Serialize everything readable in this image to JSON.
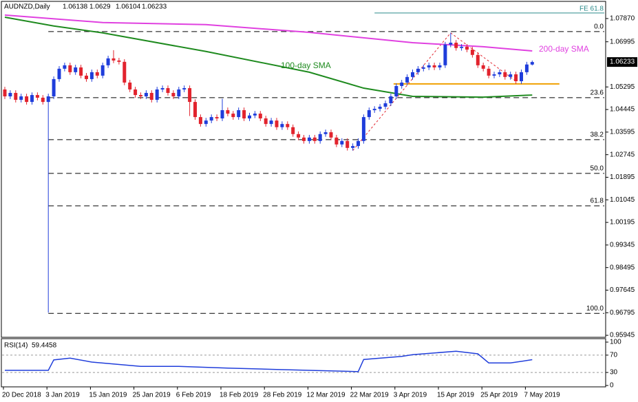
{
  "chart_data": [
    {
      "type": "candlestick",
      "title": "AUDNZD,Daily",
      "categories": [
        "20 Dec 2018",
        null,
        null,
        null,
        null,
        null,
        null,
        null,
        "3 Jan 2019",
        null,
        null,
        null,
        null,
        null,
        null,
        null,
        "15 Jan 2019",
        null,
        null,
        null,
        null,
        null,
        null,
        null,
        "25 Jan 2019",
        null,
        null,
        null,
        null,
        null,
        null,
        null,
        "6 Feb 2019",
        null,
        null,
        null,
        null,
        null,
        null,
        null,
        "18 Feb 2019",
        null,
        null,
        null,
        null,
        null,
        null,
        null,
        "28 Feb 2019",
        null,
        null,
        null,
        null,
        null,
        null,
        null,
        "12 Mar 2019",
        null,
        null,
        null,
        null,
        null,
        null,
        null,
        "22 Mar 2019",
        null,
        null,
        null,
        null,
        null,
        null,
        null,
        "3 Apr 2019",
        null,
        null,
        null,
        null,
        null,
        null,
        null,
        "15 Apr 2019",
        null,
        null,
        null,
        null,
        null,
        null,
        null,
        "25 Apr 2019",
        null,
        null,
        null,
        null,
        null,
        null,
        null,
        "7 May 2019",
        null
      ],
      "open": [
        1.052,
        1.0494,
        1.0507,
        1.0481,
        1.0494,
        1.0473,
        1.0499,
        1.0489,
        1.0473,
        1.0494,
        1.0559,
        1.0598,
        1.0611,
        1.0585,
        1.0603,
        1.0572,
        1.0559,
        1.0585,
        1.0572,
        1.0611,
        1.0637,
        1.0629,
        1.0624,
        1.0546,
        1.052,
        1.0499,
        1.0494,
        1.0507,
        1.0481,
        1.052,
        1.0525,
        1.0507,
        1.0494,
        1.052,
        1.0525,
        1.0473,
        1.0416,
        1.039,
        1.0403,
        1.0416,
        1.0411,
        1.0442,
        1.0429,
        1.0416,
        1.0442,
        1.0411,
        1.0422,
        1.0429,
        1.0411,
        1.039,
        1.0403,
        1.0378,
        1.039,
        1.0378,
        1.0352,
        1.0339,
        1.0326,
        1.0339,
        1.0326,
        1.0352,
        1.0359,
        1.0339,
        1.0313,
        1.0326,
        1.03,
        1.0307,
        1.0326,
        1.0416,
        1.0442,
        1.0447,
        1.0455,
        1.0468,
        1.0494,
        1.0533,
        1.0546,
        1.0567,
        1.0585,
        1.0598,
        1.0603,
        1.0611,
        1.0603,
        1.0611,
        1.0689,
        1.0696,
        1.0676,
        1.0681,
        1.067,
        1.065,
        1.0611,
        1.0598,
        1.0572,
        1.0577,
        1.0585,
        1.0567,
        1.0577,
        1.0551,
        1.0585,
        1.06138
      ],
      "high": [
        1.053,
        1.0517,
        1.0517,
        1.0504,
        1.0504,
        1.0509,
        1.0509,
        1.0499,
        1.0504,
        1.0569,
        1.0608,
        1.0621,
        1.0621,
        1.0613,
        1.0613,
        1.0582,
        1.0595,
        1.0595,
        1.0621,
        1.0647,
        1.0668,
        1.0639,
        1.0634,
        1.0556,
        1.053,
        1.0509,
        1.0517,
        1.0517,
        1.053,
        1.0535,
        1.0535,
        1.0517,
        1.053,
        1.0535,
        1.0535,
        1.0483,
        1.0426,
        1.0413,
        1.0426,
        1.0426,
        1.0485,
        1.0452,
        1.0439,
        1.0452,
        1.0452,
        1.0432,
        1.0439,
        1.0439,
        1.0421,
        1.0413,
        1.0413,
        1.04,
        1.04,
        1.0388,
        1.0362,
        1.0349,
        1.0349,
        1.0349,
        1.0362,
        1.0369,
        1.0369,
        1.0349,
        1.0336,
        1.0336,
        1.0317,
        1.0336,
        1.0426,
        1.0452,
        1.0457,
        1.0465,
        1.0478,
        1.0504,
        1.0543,
        1.0556,
        1.0577,
        1.0595,
        1.0608,
        1.0613,
        1.0621,
        1.0621,
        1.0621,
        1.0699,
        1.0733,
        1.0706,
        1.0691,
        1.0691,
        1.068,
        1.066,
        1.0621,
        1.0608,
        1.0587,
        1.0595,
        1.0595,
        1.0587,
        1.0587,
        1.0595,
        1.0624,
        1.0629
      ],
      "low": [
        1.0484,
        1.0484,
        1.0471,
        1.0471,
        1.0463,
        1.0463,
        1.0479,
        1.0463,
        0.968,
        1.0484,
        1.0549,
        1.0588,
        1.0575,
        1.0575,
        1.0562,
        1.0549,
        1.0549,
        1.0562,
        1.0562,
        1.0601,
        1.0619,
        1.0614,
        1.0536,
        1.051,
        1.0489,
        1.0484,
        1.0484,
        1.0471,
        1.0471,
        1.051,
        1.0497,
        1.0484,
        1.0484,
        1.051,
        1.042,
        1.0406,
        1.038,
        1.038,
        1.0393,
        1.0401,
        1.0401,
        1.0419,
        1.0406,
        1.0406,
        1.0401,
        1.0401,
        1.0412,
        1.0401,
        1.038,
        1.038,
        1.0368,
        1.0368,
        1.0368,
        1.0342,
        1.0329,
        1.0316,
        1.0316,
        1.0316,
        1.0316,
        1.0342,
        1.0329,
        1.0303,
        1.0303,
        1.029,
        1.029,
        1.0297,
        1.0316,
        1.0406,
        1.0432,
        1.0437,
        1.0445,
        1.0458,
        1.0484,
        1.0523,
        1.0536,
        1.0557,
        1.0575,
        1.0588,
        1.0593,
        1.0593,
        1.0593,
        1.0601,
        1.0679,
        1.0666,
        1.0666,
        1.066,
        1.064,
        1.0601,
        1.0588,
        1.0562,
        1.0562,
        1.0567,
        1.0557,
        1.0557,
        1.0541,
        1.0541,
        1.0575,
        1.06104
      ],
      "close": [
        1.0494,
        1.0507,
        1.0481,
        1.0494,
        1.0473,
        1.0499,
        1.0489,
        1.0473,
        1.0494,
        1.0559,
        1.0598,
        1.0611,
        1.0585,
        1.0603,
        1.0572,
        1.0559,
        1.0585,
        1.0572,
        1.0611,
        1.0637,
        1.0629,
        1.0624,
        1.0546,
        1.052,
        1.0499,
        1.0494,
        1.0507,
        1.0481,
        1.052,
        1.0525,
        1.0507,
        1.0494,
        1.052,
        1.0525,
        1.0473,
        1.0416,
        1.039,
        1.0403,
        1.0416,
        1.0411,
        1.0442,
        1.0429,
        1.0416,
        1.0442,
        1.0411,
        1.0422,
        1.0429,
        1.0411,
        1.039,
        1.0403,
        1.0378,
        1.039,
        1.0378,
        1.0352,
        1.0339,
        1.0326,
        1.0339,
        1.0326,
        1.0352,
        1.0359,
        1.0339,
        1.0313,
        1.0326,
        1.03,
        1.0307,
        1.0326,
        1.0416,
        1.0442,
        1.0447,
        1.0455,
        1.0468,
        1.0494,
        1.0533,
        1.0546,
        1.0567,
        1.0585,
        1.0598,
        1.0603,
        1.0611,
        1.0603,
        1.0611,
        1.0689,
        1.0696,
        1.0676,
        1.0681,
        1.067,
        1.065,
        1.0611,
        1.0598,
        1.0572,
        1.0577,
        1.0585,
        1.0567,
        1.0577,
        1.0551,
        1.0585,
        1.0614,
        1.06233
      ],
      "up_color": "#1f3ddb",
      "down_color": "#e2232d",
      "ylim": [
        0.9587,
        1.0849
      ],
      "yticks": [
        {
          "value": 1.0787,
          "label": "1.07870"
        },
        {
          "value": 1.06995,
          "label": "1.06995"
        },
        {
          "value": 1.05295,
          "label": "1.05295"
        },
        {
          "value": 1.04445,
          "label": "1.04445"
        },
        {
          "value": 1.03595,
          "label": "1.03595"
        },
        {
          "value": 1.02745,
          "label": "1.02745"
        },
        {
          "value": 1.01895,
          "label": "1.01895"
        },
        {
          "value": 1.01045,
          "label": "1.01045"
        },
        {
          "value": 1.00195,
          "label": "1.00195"
        },
        {
          "value": 0.99345,
          "label": "0.99345"
        },
        {
          "value": 0.98495,
          "label": "0.98495"
        },
        {
          "value": 0.97645,
          "label": "0.97645"
        },
        {
          "value": 0.96795,
          "label": "0.96795"
        },
        {
          "value": 0.95945,
          "label": "0.95945"
        }
      ],
      "last_price": {
        "value": 1.06233,
        "label": "1.06233"
      },
      "series": [
        {
          "name": "100-day SMA",
          "color": "#1e8a1e",
          "x": [
            0,
            9,
            18,
            37,
            56,
            66,
            75,
            88,
            97
          ],
          "values": [
            1.0792,
            1.0759,
            1.0733,
            1.0663,
            1.0585,
            1.0525,
            1.0494,
            1.0491,
            1.0499
          ]
        },
        {
          "name": "200-day SMA",
          "color": "#e040e0",
          "x": [
            0,
            18,
            37,
            56,
            75,
            88,
            97
          ],
          "values": [
            1.08,
            1.0772,
            1.0764,
            1.0735,
            1.0696,
            1.0681,
            1.0665
          ]
        }
      ],
      "fib_levels": [
        {
          "value": 1.0738,
          "label": "0.0"
        },
        {
          "value": 1.0489,
          "label": "23.6"
        },
        {
          "value": 1.0331,
          "label": "38.2"
        },
        {
          "value": 1.0204,
          "label": "50.0"
        },
        {
          "value": 1.0082,
          "label": "61.8"
        },
        {
          "value": 0.9677,
          "label": "100.0"
        }
      ],
      "fe_level": {
        "value": 1.0808,
        "label": "FE 61.8"
      },
      "support": {
        "value": 1.0541,
        "color": "#f0a000",
        "x": [
          71.5,
          102
        ]
      },
      "trend_lines": [
        {
          "x": [
            64,
            82
          ],
          "values": [
            1.029,
            1.0733
          ]
        },
        {
          "x": [
            82,
            94
          ],
          "values": [
            1.0733,
            1.0551
          ]
        }
      ]
    },
    {
      "type": "line",
      "title": "RSI(14)",
      "color": "#1f3ddb",
      "x": [
        0,
        8,
        9,
        12,
        16,
        25,
        32,
        41,
        50,
        56,
        65,
        66,
        73,
        75,
        83,
        87,
        89,
        93,
        97
      ],
      "values": [
        35,
        35,
        59,
        63,
        54,
        44,
        44,
        40,
        37,
        35,
        32,
        60,
        67,
        71,
        79,
        73,
        52,
        52,
        59.4458
      ],
      "ylim": [
        0,
        100
      ],
      "yticks": [
        100,
        70,
        30,
        0
      ],
      "levels": [
        70,
        30
      ]
    }
  ]
}
